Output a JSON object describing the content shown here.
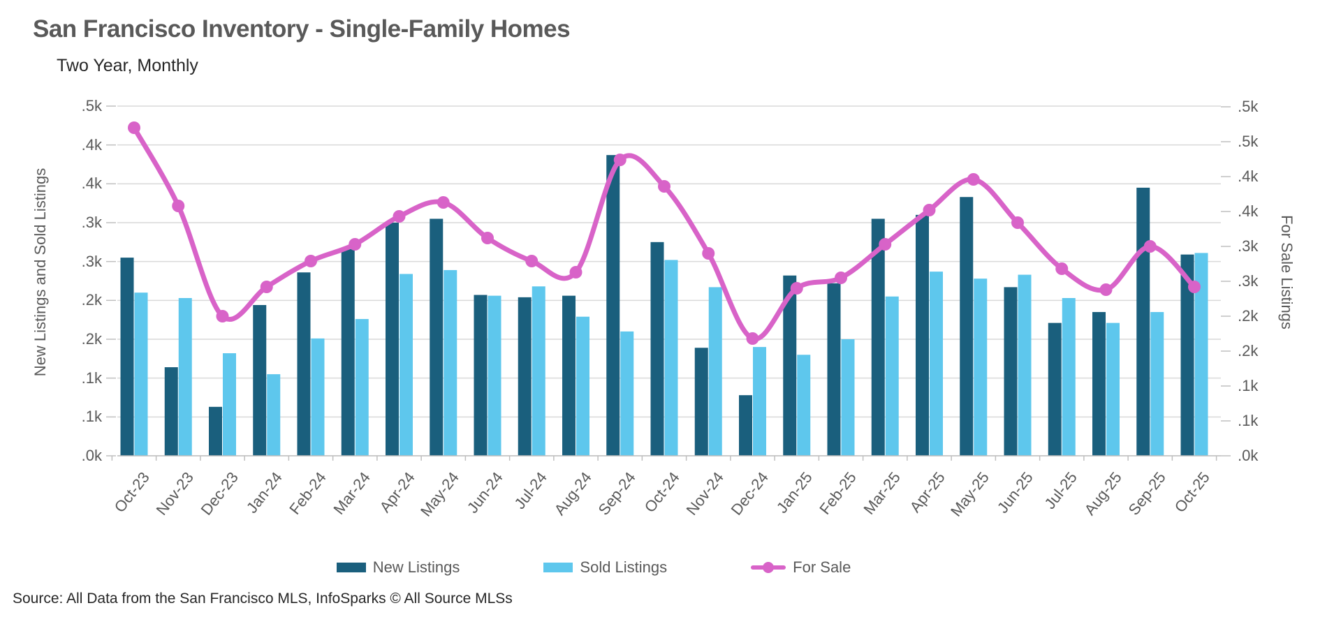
{
  "title": "San Francisco Inventory - Single-Family Homes",
  "subtitle": "Two Year, Monthly",
  "source": "Source: All Data from the San Francisco MLS, InfoSparks © All Source MLSs",
  "colors": {
    "new_listings": "#1a5f7d",
    "sold_listings": "#5ec7ed",
    "for_sale": "#d863c8",
    "gridline": "#d9d9d9",
    "axis_line": "#bfbfbf",
    "text_gray": "#595959",
    "text_dark": "#262626"
  },
  "left_axis": {
    "title": "New Listings and Sold Listings",
    "min": 0,
    "max": 450,
    "step": 50,
    "tick_labels_bottom_to_top": [
      ".0k",
      ".1k",
      ".1k",
      ".2k",
      ".2k",
      ".3k",
      ".3k",
      ".4k",
      ".4k",
      ".5k"
    ]
  },
  "right_axis": {
    "title": "For Sale Listings",
    "min": 0,
    "max": 500,
    "step": 50,
    "tick_labels_bottom_to_top": [
      ".0k",
      ".1k",
      ".1k",
      ".2k",
      ".2k",
      ".3k",
      ".3k",
      ".4k",
      ".4k",
      ".5k",
      ".5k"
    ]
  },
  "legend": [
    {
      "label": "New Listings",
      "type": "bar",
      "color": "#1a5f7d"
    },
    {
      "label": "Sold Listings",
      "type": "bar",
      "color": "#5ec7ed"
    },
    {
      "label": "For Sale",
      "type": "line",
      "color": "#d863c8"
    }
  ],
  "chart_data": {
    "type": "bar",
    "note": "grouped bars on left axis plus smoothed line with markers on right axis; values are listing counts, axis labels shown in thousands (k)",
    "grid": true,
    "legend_position": "bottom",
    "left_ylim": [
      0,
      450
    ],
    "right_ylim": [
      0,
      500
    ],
    "categories": [
      "Oct-23",
      "Nov-23",
      "Dec-23",
      "Jan-24",
      "Feb-24",
      "Mar-24",
      "Apr-24",
      "May-24",
      "Jun-24",
      "Jul-24",
      "Aug-24",
      "Sep-24",
      "Oct-24",
      "Nov-24",
      "Dec-24",
      "Jan-25",
      "Feb-25",
      "Mar-25",
      "Apr-25",
      "May-25",
      "Jun-25",
      "Jul-25",
      "Aug-25",
      "Sep-25",
      "Oct-25"
    ],
    "series": [
      {
        "name": "New Listings",
        "type": "bar",
        "axis": "left",
        "color": "#1a5f7d",
        "values": [
          255,
          114,
          63,
          194,
          236,
          266,
          300,
          305,
          207,
          204,
          206,
          387,
          275,
          139,
          78,
          232,
          222,
          305,
          310,
          333,
          217,
          171,
          185,
          345,
          259
        ]
      },
      {
        "name": "Sold Listings",
        "type": "bar",
        "axis": "left",
        "color": "#5ec7ed",
        "values": [
          210,
          203,
          132,
          105,
          151,
          176,
          234,
          239,
          206,
          218,
          179,
          160,
          252,
          217,
          140,
          130,
          150,
          205,
          237,
          228,
          233,
          203,
          171,
          185,
          261
        ]
      },
      {
        "name": "For Sale",
        "type": "line",
        "axis": "right",
        "color": "#d863c8",
        "values": [
          470,
          358,
          200,
          242,
          279,
          303,
          343,
          363,
          312,
          279,
          263,
          424,
          386,
          290,
          168,
          240,
          255,
          303,
          352,
          396,
          334,
          268,
          238,
          300,
          242
        ]
      }
    ]
  }
}
